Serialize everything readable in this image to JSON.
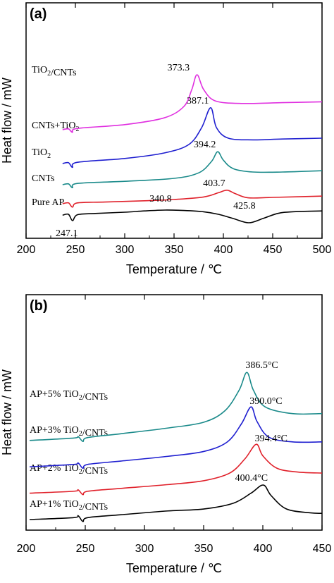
{
  "chart_data": [
    {
      "type": "line",
      "panel_label": "(a)",
      "xlabel": "Temperature / ℃",
      "ylabel": "Heat flow / mW",
      "xlim": [
        200,
        500
      ],
      "xticks": [
        200,
        250,
        300,
        350,
        400,
        450,
        500
      ],
      "yticks_shown": false,
      "series": [
        {
          "name": "Pure AP",
          "color": "#000000",
          "offset": 0.0,
          "points": [
            [
              237,
              0.18
            ],
            [
              243,
              0.2
            ],
            [
              247.1,
              0.05
            ],
            [
              252,
              0.19
            ],
            [
              270,
              0.22
            ],
            [
              300,
              0.25
            ],
            [
              320,
              0.28
            ],
            [
              340.8,
              0.3
            ],
            [
              360,
              0.29
            ],
            [
              380,
              0.26
            ],
            [
              395,
              0.2
            ],
            [
              410,
              0.1
            ],
            [
              425.8,
              0.0
            ],
            [
              440,
              0.1
            ],
            [
              455,
              0.22
            ],
            [
              470,
              0.26
            ],
            [
              500,
              0.28
            ]
          ]
        },
        {
          "name": "CNTs",
          "color": "#e0202a",
          "offset": 0.45,
          "points": [
            [
              237,
              0.0
            ],
            [
              243,
              0.02
            ],
            [
              247,
              -0.08
            ],
            [
              252,
              0.02
            ],
            [
              280,
              0.04
            ],
            [
              320,
              0.07
            ],
            [
              350,
              0.1
            ],
            [
              380,
              0.16
            ],
            [
              395,
              0.26
            ],
            [
              403.7,
              0.32
            ],
            [
              412,
              0.24
            ],
            [
              425,
              0.14
            ],
            [
              450,
              0.15
            ],
            [
              500,
              0.18
            ]
          ]
        },
        {
          "name": "TiO2",
          "color": "#1a8a8a",
          "offset": 0.9,
          "points": [
            [
              237,
              0.0
            ],
            [
              243,
              0.02
            ],
            [
              247,
              -0.07
            ],
            [
              252,
              0.03
            ],
            [
              300,
              0.08
            ],
            [
              350,
              0.15
            ],
            [
              375,
              0.28
            ],
            [
              388,
              0.55
            ],
            [
              394.2,
              0.78
            ],
            [
              400,
              0.58
            ],
            [
              410,
              0.38
            ],
            [
              430,
              0.3
            ],
            [
              460,
              0.3
            ],
            [
              500,
              0.33
            ]
          ]
        },
        {
          "name": "CNTs+TiO2",
          "color": "#1f1fd0",
          "offset": 1.4,
          "points": [
            [
              237,
              0.0
            ],
            [
              243,
              0.02
            ],
            [
              247,
              -0.09
            ],
            [
              252,
              0.03
            ],
            [
              300,
              0.12
            ],
            [
              340,
              0.25
            ],
            [
              365,
              0.45
            ],
            [
              378,
              0.85
            ],
            [
              387.1,
              1.32
            ],
            [
              393,
              0.85
            ],
            [
              405,
              0.6
            ],
            [
              430,
              0.56
            ],
            [
              460,
              0.58
            ],
            [
              500,
              0.6
            ]
          ]
        },
        {
          "name": "TiO2/CNTs",
          "color": "#e030e0",
          "offset": 2.2,
          "points": [
            [
              237,
              0.0
            ],
            [
              243,
              0.02
            ],
            [
              247,
              -0.06
            ],
            [
              252,
              0.03
            ],
            [
              300,
              0.12
            ],
            [
              340,
              0.28
            ],
            [
              360,
              0.55
            ],
            [
              368,
              0.95
            ],
            [
              373.3,
              1.3
            ],
            [
              380,
              0.95
            ],
            [
              392,
              0.68
            ],
            [
              420,
              0.62
            ],
            [
              460,
              0.64
            ],
            [
              500,
              0.66
            ]
          ]
        }
      ],
      "annotations": [
        {
          "text": "373.3",
          "x": 373.3,
          "series": "TiO2/CNTs"
        },
        {
          "text": "387.1",
          "x": 387.1,
          "series": "CNTs+TiO2"
        },
        {
          "text": "394.2",
          "x": 394.2,
          "series": "TiO2"
        },
        {
          "text": "403.7",
          "x": 403.7,
          "series": "CNTs"
        },
        {
          "text": "340.8",
          "x": 340.8,
          "series": "Pure AP"
        },
        {
          "text": "425.8",
          "x": 425.8,
          "series": "Pure AP"
        },
        {
          "text": "247.1",
          "x": 247.1,
          "series": "Pure AP"
        }
      ]
    },
    {
      "type": "line",
      "panel_label": "(b)",
      "xlabel": "Temperature / ℃",
      "ylabel": "Heat flow / mW",
      "xlim": [
        200,
        450
      ],
      "xticks": [
        200,
        250,
        300,
        350,
        400,
        450
      ],
      "yticks_shown": false,
      "series": [
        {
          "name": "AP+1% TiO2/CNTs",
          "color": "#000000",
          "offset": 0.0,
          "points": [
            [
              203,
              0.0
            ],
            [
              240,
              0.04
            ],
            [
              244,
              0.08
            ],
            [
              248,
              -0.04
            ],
            [
              252,
              0.04
            ],
            [
              280,
              0.1
            ],
            [
              320,
              0.18
            ],
            [
              350,
              0.22
            ],
            [
              375,
              0.34
            ],
            [
              390,
              0.55
            ],
            [
              400.4,
              0.72
            ],
            [
              407,
              0.5
            ],
            [
              420,
              0.22
            ],
            [
              440,
              0.14
            ],
            [
              450,
              0.13
            ]
          ]
        },
        {
          "name": "AP+2% TiO2/CNTs",
          "color": "#e0202a",
          "offset": 0.55,
          "points": [
            [
              203,
              0.0
            ],
            [
              240,
              0.04
            ],
            [
              244,
              0.07
            ],
            [
              248,
              -0.03
            ],
            [
              252,
              0.04
            ],
            [
              280,
              0.1
            ],
            [
              320,
              0.18
            ],
            [
              350,
              0.26
            ],
            [
              372,
              0.42
            ],
            [
              385,
              0.72
            ],
            [
              394.4,
              1.02
            ],
            [
              400,
              0.78
            ],
            [
              412,
              0.52
            ],
            [
              430,
              0.44
            ],
            [
              450,
              0.42
            ]
          ]
        },
        {
          "name": "AP+3% TiO2/CNTs",
          "color": "#1f1fd0",
          "offset": 1.1,
          "points": [
            [
              203,
              0.0
            ],
            [
              240,
              0.05
            ],
            [
              244,
              0.08
            ],
            [
              248,
              -0.03
            ],
            [
              252,
              0.05
            ],
            [
              280,
              0.12
            ],
            [
              320,
              0.22
            ],
            [
              350,
              0.32
            ],
            [
              370,
              0.52
            ],
            [
              382,
              0.9
            ],
            [
              390.0,
              1.25
            ],
            [
              395,
              0.95
            ],
            [
              405,
              0.62
            ],
            [
              425,
              0.52
            ],
            [
              450,
              0.52
            ]
          ]
        },
        {
          "name": "AP+5% TiO2/CNTs",
          "color": "#1a8a8a",
          "offset": 1.65,
          "points": [
            [
              203,
              0.0
            ],
            [
              240,
              0.05
            ],
            [
              244,
              0.08
            ],
            [
              248,
              -0.02
            ],
            [
              252,
              0.06
            ],
            [
              280,
              0.14
            ],
            [
              320,
              0.26
            ],
            [
              350,
              0.38
            ],
            [
              368,
              0.62
            ],
            [
              380,
              1.05
            ],
            [
              386.5,
              1.42
            ],
            [
              392,
              1.05
            ],
            [
              402,
              0.7
            ],
            [
              425,
              0.56
            ],
            [
              450,
              0.56
            ]
          ]
        }
      ],
      "annotations": [
        {
          "text": "386.5°C",
          "x": 386.5,
          "series": "AP+5% TiO2/CNTs"
        },
        {
          "text": "390.0°C",
          "x": 390.0,
          "series": "AP+3% TiO2/CNTs"
        },
        {
          "text": "394.4°C",
          "x": 394.4,
          "series": "AP+2% TiO2/CNTs"
        },
        {
          "text": "400.4°C",
          "x": 400.4,
          "series": "AP+1% TiO2/CNTs"
        }
      ]
    }
  ]
}
